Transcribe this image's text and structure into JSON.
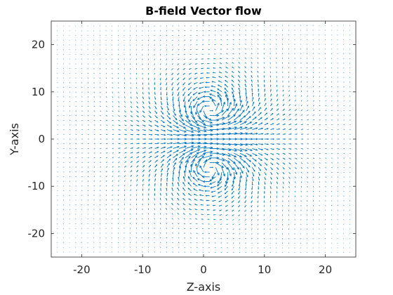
{
  "chart_data": {
    "type": "quiver",
    "title": "B-field Vector flow",
    "xlabel": "Z-axis",
    "ylabel": "Y-axis",
    "xlim": [
      -25,
      25
    ],
    "ylim": [
      -25,
      25
    ],
    "xticks": [
      -20,
      -10,
      0,
      10,
      20
    ],
    "yticks": [
      -20,
      -10,
      0,
      10,
      20
    ],
    "grid": false,
    "field": {
      "grid_spacing": 1,
      "loop_centers": [
        [
          1,
          6
        ],
        [
          1,
          -6
        ]
      ],
      "loop_core_radius": 2,
      "description_of_data": "vector field of a current loop (dipole-like B-field) sampled on a 1-unit grid from -24 to 24"
    },
    "colors": {
      "arrow": "#0072BD",
      "axes": "#262626"
    }
  }
}
